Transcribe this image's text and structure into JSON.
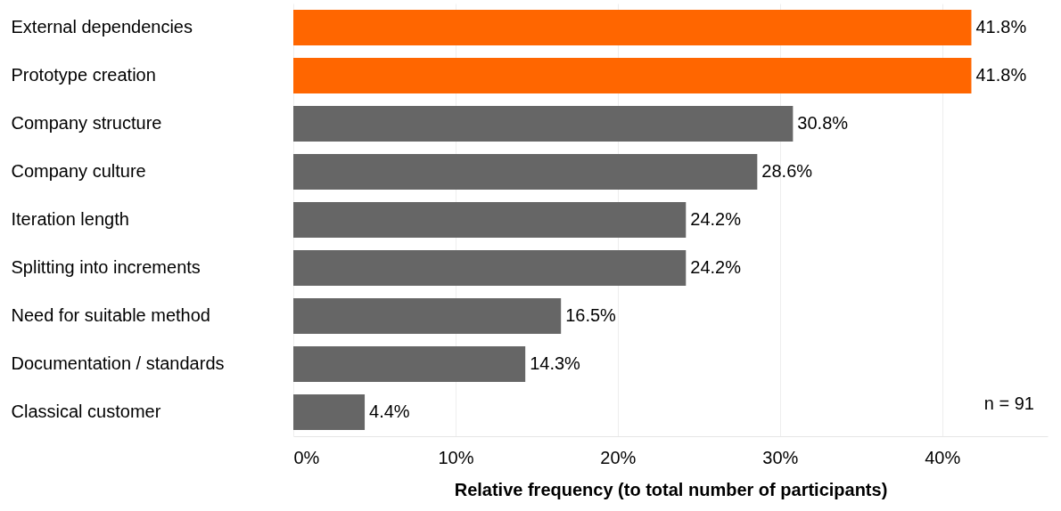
{
  "chart_data": {
    "type": "bar",
    "orientation": "horizontal",
    "xlabel": "Relative frequency (to total number of participants)",
    "categories": [
      "External dependencies",
      "Prototype creation",
      "Company structure",
      "Company culture",
      "Iteration length",
      "Splitting into increments",
      "Need for suitable method",
      "Documentation / standards",
      "Classical customer"
    ],
    "values": [
      41.8,
      41.8,
      30.8,
      28.6,
      24.2,
      24.2,
      16.5,
      14.3,
      4.4
    ],
    "value_labels": [
      "41.8%",
      "41.8%",
      "30.8%",
      "28.6%",
      "24.2%",
      "24.2%",
      "16.5%",
      "14.3%",
      "4.4%"
    ],
    "colors": [
      "#ff6600",
      "#ff6600",
      "#666666",
      "#666666",
      "#666666",
      "#666666",
      "#666666",
      "#666666",
      "#666666"
    ],
    "xlim": [
      0,
      46.5
    ],
    "xticks": [
      {
        "value": 0,
        "label": "0%"
      },
      {
        "value": 10,
        "label": "10%"
      },
      {
        "value": 20,
        "label": "20%"
      },
      {
        "value": 30,
        "label": "30%"
      },
      {
        "value": 40,
        "label": "40%"
      }
    ],
    "grid": "x",
    "annotations": [
      "n = 91"
    ]
  }
}
